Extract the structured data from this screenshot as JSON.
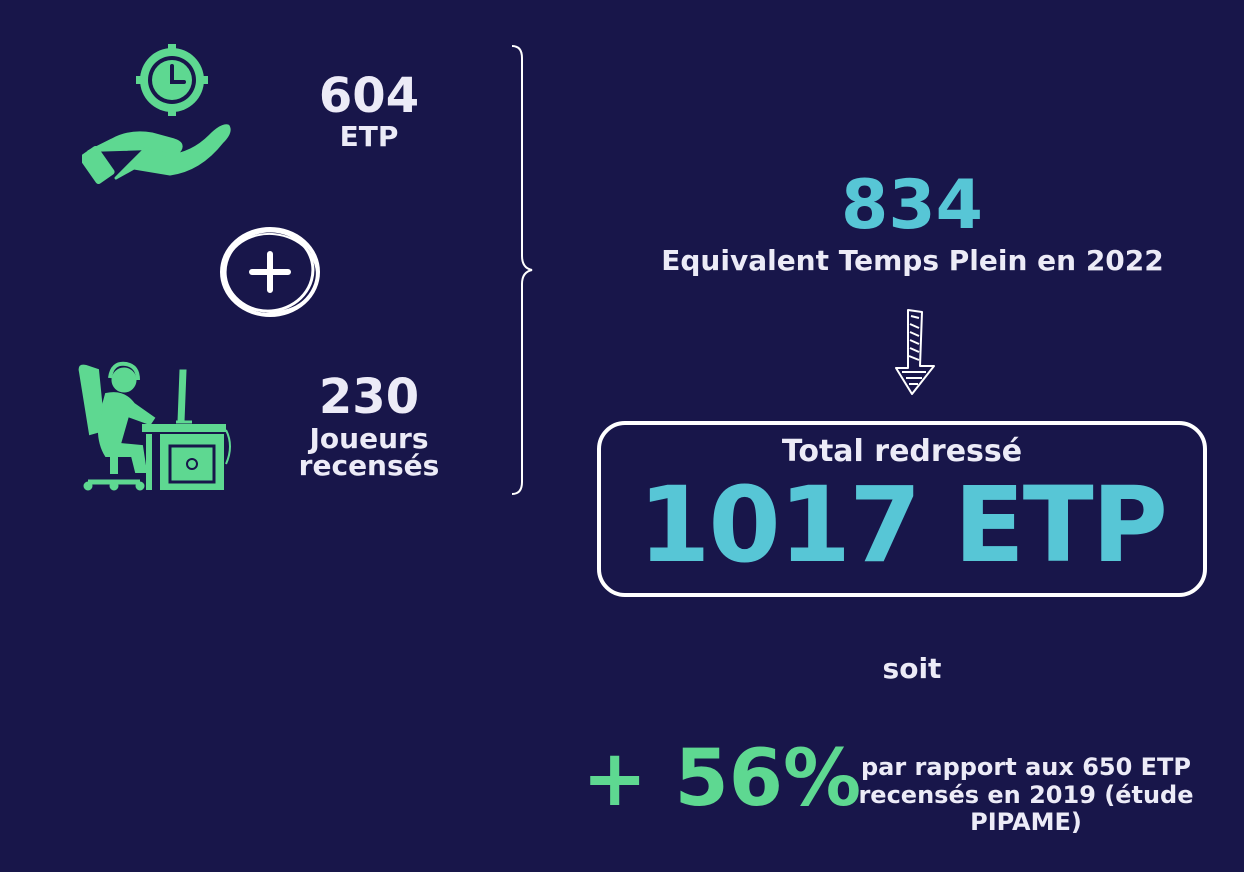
{
  "left": {
    "etp_value": "604",
    "etp_label": "ETP",
    "players_value": "230",
    "players_label_line1": "Joueurs",
    "players_label_line2": "recensés"
  },
  "right": {
    "total_value": "834",
    "total_label": "Equivalent Temps Plein en 2022",
    "adjusted_title": "Total redressé",
    "adjusted_value": "1017 ETP",
    "soit": "soit",
    "growth_value": "+ 56%",
    "growth_text_line1": "par rapport aux 650 ETP",
    "growth_text_line2": "recensés en 2019 (étude",
    "growth_text_line3": "PIPAME)"
  },
  "colors": {
    "background": "#18164a",
    "accent_green": "#5ed891",
    "accent_cyan": "#57c6d6",
    "text_light": "#ecebf7"
  },
  "icons": [
    "hand-clock-icon",
    "plus-circle-icon",
    "gamer-desk-icon",
    "curly-brace-icon",
    "down-arrow-icon"
  ]
}
